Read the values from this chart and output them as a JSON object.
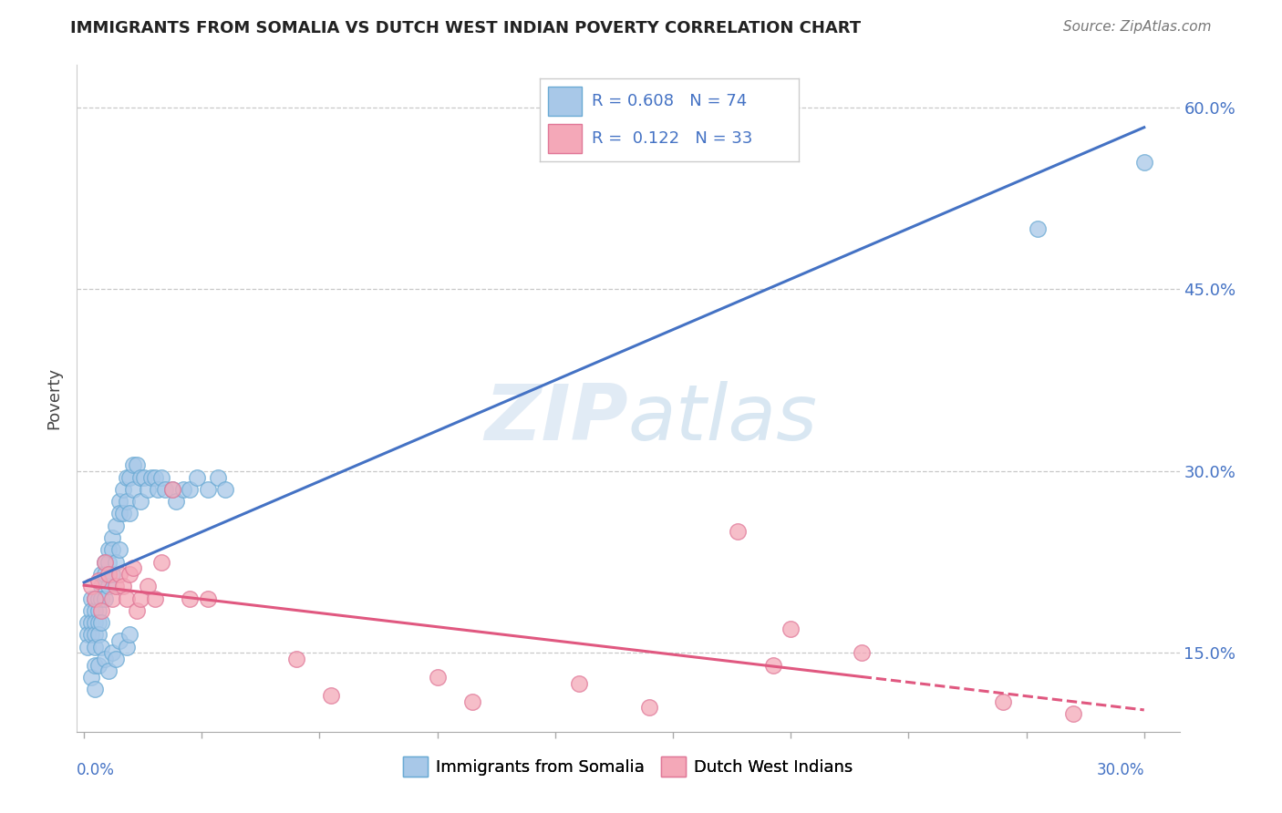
{
  "title": "IMMIGRANTS FROM SOMALIA VS DUTCH WEST INDIAN POVERTY CORRELATION CHART",
  "source": "Source: ZipAtlas.com",
  "ylabel": "Poverty",
  "ylim": [
    0.085,
    0.635
  ],
  "xlim": [
    -0.002,
    0.31
  ],
  "yticks": [
    0.15,
    0.3,
    0.45,
    0.6
  ],
  "ytick_labels": [
    "15.0%",
    "30.0%",
    "45.0%",
    "60.0%"
  ],
  "watermark": "ZIPat las",
  "blue_color": "#a8c8e8",
  "blue_edge": "#6aaad4",
  "pink_color": "#f4a8b8",
  "pink_edge": "#e07898",
  "trend_blue": "#4472c4",
  "trend_pink": "#e05880",
  "somalia_x": [
    0.001,
    0.001,
    0.001,
    0.002,
    0.002,
    0.002,
    0.002,
    0.003,
    0.003,
    0.003,
    0.003,
    0.003,
    0.004,
    0.004,
    0.004,
    0.004,
    0.005,
    0.005,
    0.005,
    0.005,
    0.006,
    0.006,
    0.006,
    0.007,
    0.007,
    0.007,
    0.008,
    0.008,
    0.008,
    0.009,
    0.009,
    0.01,
    0.01,
    0.01,
    0.011,
    0.011,
    0.012,
    0.012,
    0.013,
    0.013,
    0.014,
    0.014,
    0.015,
    0.016,
    0.016,
    0.017,
    0.018,
    0.019,
    0.02,
    0.021,
    0.022,
    0.023,
    0.025,
    0.026,
    0.028,
    0.03,
    0.032,
    0.035,
    0.038,
    0.04,
    0.002,
    0.003,
    0.003,
    0.004,
    0.005,
    0.006,
    0.007,
    0.008,
    0.009,
    0.01,
    0.012,
    0.013,
    0.27,
    0.3
  ],
  "somalia_y": [
    0.175,
    0.165,
    0.155,
    0.195,
    0.185,
    0.175,
    0.165,
    0.195,
    0.185,
    0.175,
    0.165,
    0.155,
    0.195,
    0.185,
    0.175,
    0.165,
    0.215,
    0.205,
    0.195,
    0.175,
    0.225,
    0.215,
    0.195,
    0.235,
    0.225,
    0.205,
    0.245,
    0.235,
    0.215,
    0.255,
    0.225,
    0.275,
    0.265,
    0.235,
    0.285,
    0.265,
    0.295,
    0.275,
    0.295,
    0.265,
    0.305,
    0.285,
    0.305,
    0.295,
    0.275,
    0.295,
    0.285,
    0.295,
    0.295,
    0.285,
    0.295,
    0.285,
    0.285,
    0.275,
    0.285,
    0.285,
    0.295,
    0.285,
    0.295,
    0.285,
    0.13,
    0.14,
    0.12,
    0.14,
    0.155,
    0.145,
    0.135,
    0.15,
    0.145,
    0.16,
    0.155,
    0.165,
    0.5,
    0.555
  ],
  "dutch_x": [
    0.002,
    0.003,
    0.004,
    0.005,
    0.006,
    0.007,
    0.008,
    0.009,
    0.01,
    0.011,
    0.012,
    0.013,
    0.014,
    0.015,
    0.016,
    0.018,
    0.02,
    0.022,
    0.025,
    0.03,
    0.035,
    0.06,
    0.07,
    0.1,
    0.11,
    0.14,
    0.16,
    0.185,
    0.195,
    0.2,
    0.22,
    0.26,
    0.28
  ],
  "dutch_y": [
    0.205,
    0.195,
    0.21,
    0.185,
    0.225,
    0.215,
    0.195,
    0.205,
    0.215,
    0.205,
    0.195,
    0.215,
    0.22,
    0.185,
    0.195,
    0.205,
    0.195,
    0.225,
    0.285,
    0.195,
    0.195,
    0.145,
    0.115,
    0.13,
    0.11,
    0.125,
    0.105,
    0.25,
    0.14,
    0.17,
    0.15,
    0.11,
    0.1
  ]
}
